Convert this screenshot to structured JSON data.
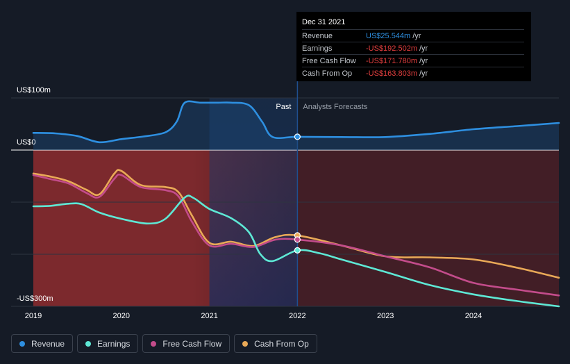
{
  "chart_data": {
    "type": "line",
    "x_unit": "year",
    "xlim": [
      2019.0,
      2024.97
    ],
    "ylim": [
      -300,
      100
    ],
    "y_tick_labels": [
      {
        "value": 100,
        "label": "US$100m"
      },
      {
        "value": 0,
        "label": "US$0"
      },
      {
        "value": -300,
        "label": "-US$300m"
      }
    ],
    "x_ticks": [
      {
        "value": 2019,
        "label": "2019"
      },
      {
        "value": 2020,
        "label": "2020"
      },
      {
        "value": 2021,
        "label": "2021"
      },
      {
        "value": 2022,
        "label": "2022"
      },
      {
        "value": 2023,
        "label": "2023"
      },
      {
        "value": 2024,
        "label": "2024"
      }
    ],
    "divider_x": 2022.0,
    "highlight_start_x": 2021.0,
    "past_label": "Past",
    "forecast_label": "Analysts Forecasts",
    "series": [
      {
        "name": "Revenue",
        "color": "#2e8fe0",
        "points": [
          [
            2019.0,
            33
          ],
          [
            2019.25,
            32
          ],
          [
            2019.5,
            27
          ],
          [
            2019.75,
            15
          ],
          [
            2020.0,
            21
          ],
          [
            2020.25,
            26
          ],
          [
            2020.5,
            34
          ],
          [
            2020.63,
            55
          ],
          [
            2020.72,
            91
          ],
          [
            2020.9,
            91
          ],
          [
            2021.1,
            91
          ],
          [
            2021.25,
            91
          ],
          [
            2021.45,
            86
          ],
          [
            2021.6,
            54
          ],
          [
            2021.72,
            25
          ],
          [
            2022.0,
            25.5
          ],
          [
            2022.5,
            25
          ],
          [
            2023.0,
            25
          ],
          [
            2023.5,
            31
          ],
          [
            2024.0,
            40
          ],
          [
            2024.5,
            46
          ],
          [
            2024.97,
            52
          ]
        ]
      },
      {
        "name": "Earnings",
        "color": "#5ee8d5",
        "points": [
          [
            2019.0,
            -108
          ],
          [
            2019.2,
            -107
          ],
          [
            2019.4,
            -103
          ],
          [
            2019.55,
            -104
          ],
          [
            2019.75,
            -120
          ],
          [
            2020.0,
            -132
          ],
          [
            2020.3,
            -141
          ],
          [
            2020.5,
            -132
          ],
          [
            2020.72,
            -91
          ],
          [
            2020.82,
            -92
          ],
          [
            2021.0,
            -113
          ],
          [
            2021.25,
            -131
          ],
          [
            2021.45,
            -158
          ],
          [
            2021.58,
            -200
          ],
          [
            2021.72,
            -213
          ],
          [
            2022.0,
            -192.5
          ],
          [
            2022.25,
            -198
          ],
          [
            2022.5,
            -210
          ],
          [
            2023.0,
            -234
          ],
          [
            2023.5,
            -259
          ],
          [
            2024.0,
            -277
          ],
          [
            2024.5,
            -290
          ],
          [
            2024.97,
            -300
          ]
        ]
      },
      {
        "name": "Free Cash Flow",
        "color": "#c34c8b",
        "points": [
          [
            2019.0,
            -48
          ],
          [
            2019.2,
            -56
          ],
          [
            2019.4,
            -64
          ],
          [
            2019.6,
            -82
          ],
          [
            2019.75,
            -90
          ],
          [
            2019.92,
            -55
          ],
          [
            2020.0,
            -48
          ],
          [
            2020.22,
            -71
          ],
          [
            2020.5,
            -77
          ],
          [
            2020.65,
            -89
          ],
          [
            2020.8,
            -137
          ],
          [
            2021.0,
            -183
          ],
          [
            2021.25,
            -180
          ],
          [
            2021.5,
            -186
          ],
          [
            2021.75,
            -172
          ],
          [
            2022.0,
            -171.8
          ],
          [
            2022.5,
            -183
          ],
          [
            2023.0,
            -204
          ],
          [
            2023.5,
            -225
          ],
          [
            2024.0,
            -255
          ],
          [
            2024.5,
            -268
          ],
          [
            2024.97,
            -279
          ]
        ]
      },
      {
        "name": "Cash From Op",
        "color": "#e9a957",
        "points": [
          [
            2019.0,
            -45
          ],
          [
            2019.2,
            -51
          ],
          [
            2019.4,
            -60
          ],
          [
            2019.6,
            -76
          ],
          [
            2019.75,
            -85
          ],
          [
            2019.92,
            -45
          ],
          [
            2020.0,
            -40
          ],
          [
            2020.22,
            -67
          ],
          [
            2020.5,
            -71
          ],
          [
            2020.65,
            -81
          ],
          [
            2020.8,
            -125
          ],
          [
            2021.0,
            -178
          ],
          [
            2021.25,
            -176
          ],
          [
            2021.5,
            -184
          ],
          [
            2021.75,
            -167
          ],
          [
            2022.0,
            -163.8
          ],
          [
            2022.5,
            -183
          ],
          [
            2023.0,
            -204
          ],
          [
            2023.5,
            -206
          ],
          [
            2024.0,
            -210
          ],
          [
            2024.5,
            -226
          ],
          [
            2024.97,
            -245
          ]
        ]
      }
    ]
  },
  "tooltip": {
    "date": "Dec 31 2021",
    "rows": [
      {
        "label": "Revenue",
        "value": "US$25.544m",
        "unit": "/yr",
        "color": "#2e8fe0"
      },
      {
        "label": "Earnings",
        "value": "-US$192.502m",
        "unit": "/yr",
        "color": "#e53f3f"
      },
      {
        "label": "Free Cash Flow",
        "value": "-US$171.780m",
        "unit": "/yr",
        "color": "#e53f3f"
      },
      {
        "label": "Cash From Op",
        "value": "-US$163.803m",
        "unit": "/yr",
        "color": "#e53f3f"
      }
    ]
  },
  "legend": {
    "items": [
      {
        "label": "Revenue",
        "color": "#2e8fe0"
      },
      {
        "label": "Earnings",
        "color": "#5ee8d5"
      },
      {
        "label": "Free Cash Flow",
        "color": "#c34c8b"
      },
      {
        "label": "Cash From Op",
        "color": "#e9a957"
      }
    ]
  }
}
